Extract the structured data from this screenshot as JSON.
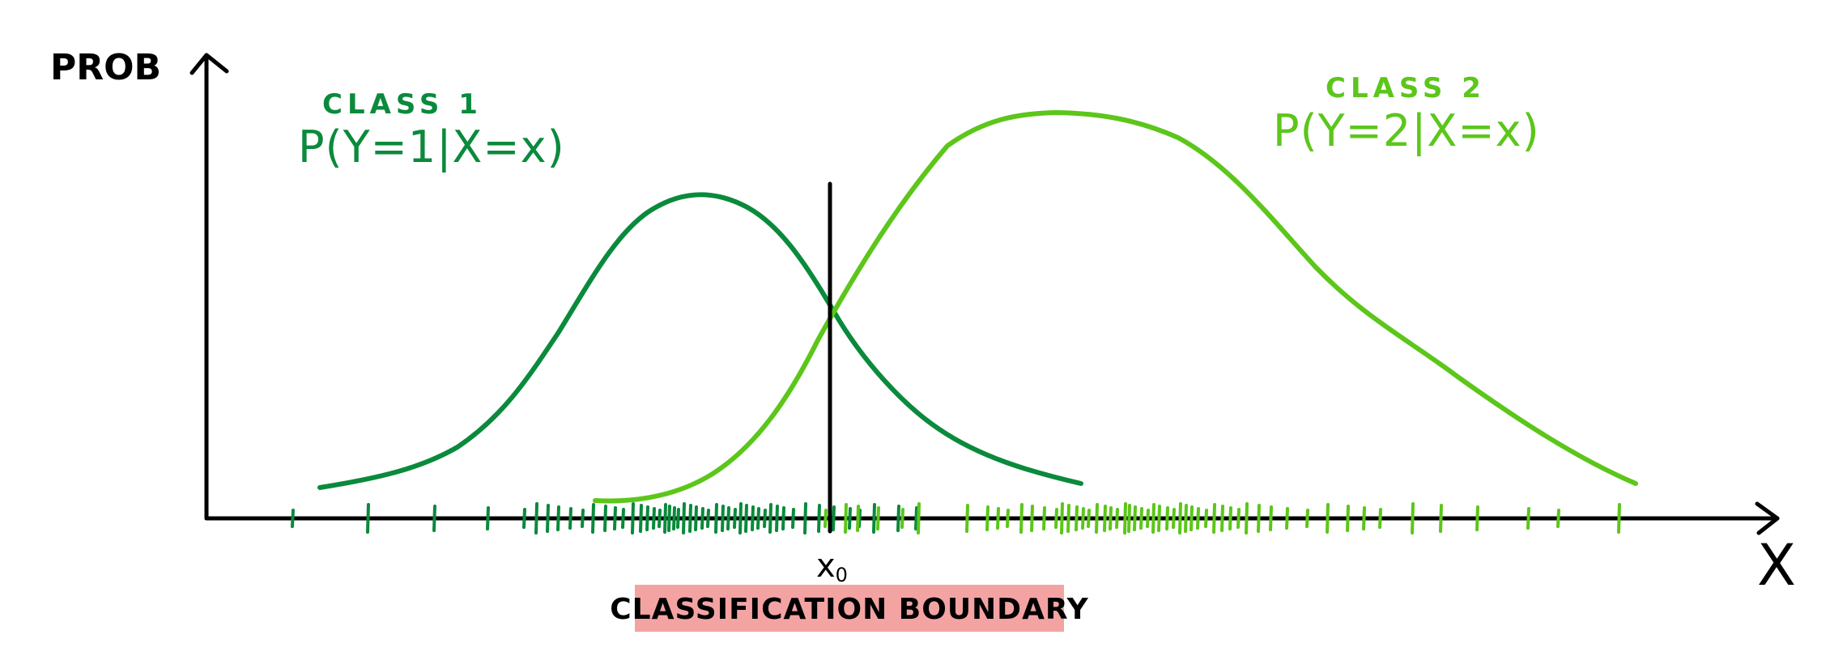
{
  "axes": {
    "y_label": "PROB",
    "x_label": "X"
  },
  "class1": {
    "title": "CLASS 1",
    "formula": "P(Y=1|X=x)",
    "color": "#0a8a3c"
  },
  "class2": {
    "title": "CLASS 2",
    "formula": "P(Y=2|X=x)",
    "color": "#5cc61a"
  },
  "boundary": {
    "x_marker": "x",
    "x_marker_subscript": "0",
    "label": "CLASSIFICATION BOUNDARY",
    "highlight_color": "#f4a3a3"
  },
  "axis_color": "#000000"
}
